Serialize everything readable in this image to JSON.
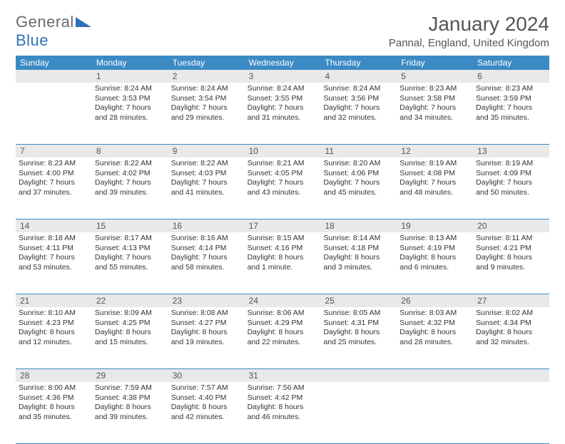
{
  "logo": {
    "text1": "General",
    "text2": "Blue"
  },
  "title": "January 2024",
  "location": "Pannal, England, United Kingdom",
  "colors": {
    "header_bg": "#3b8ac4",
    "header_text": "#ffffff",
    "daynum_bg": "#e9e9e9",
    "border": "#3b8ac4",
    "logo_gray": "#6b6b6b",
    "logo_blue": "#2f72b8"
  },
  "weekdays": [
    "Sunday",
    "Monday",
    "Tuesday",
    "Wednesday",
    "Thursday",
    "Friday",
    "Saturday"
  ],
  "weeks": [
    [
      {
        "n": "",
        "sr": "",
        "ss": "",
        "dl": ""
      },
      {
        "n": "1",
        "sr": "Sunrise: 8:24 AM",
        "ss": "Sunset: 3:53 PM",
        "dl": "Daylight: 7 hours and 28 minutes."
      },
      {
        "n": "2",
        "sr": "Sunrise: 8:24 AM",
        "ss": "Sunset: 3:54 PM",
        "dl": "Daylight: 7 hours and 29 minutes."
      },
      {
        "n": "3",
        "sr": "Sunrise: 8:24 AM",
        "ss": "Sunset: 3:55 PM",
        "dl": "Daylight: 7 hours and 31 minutes."
      },
      {
        "n": "4",
        "sr": "Sunrise: 8:24 AM",
        "ss": "Sunset: 3:56 PM",
        "dl": "Daylight: 7 hours and 32 minutes."
      },
      {
        "n": "5",
        "sr": "Sunrise: 8:23 AM",
        "ss": "Sunset: 3:58 PM",
        "dl": "Daylight: 7 hours and 34 minutes."
      },
      {
        "n": "6",
        "sr": "Sunrise: 8:23 AM",
        "ss": "Sunset: 3:59 PM",
        "dl": "Daylight: 7 hours and 35 minutes."
      }
    ],
    [
      {
        "n": "7",
        "sr": "Sunrise: 8:23 AM",
        "ss": "Sunset: 4:00 PM",
        "dl": "Daylight: 7 hours and 37 minutes."
      },
      {
        "n": "8",
        "sr": "Sunrise: 8:22 AM",
        "ss": "Sunset: 4:02 PM",
        "dl": "Daylight: 7 hours and 39 minutes."
      },
      {
        "n": "9",
        "sr": "Sunrise: 8:22 AM",
        "ss": "Sunset: 4:03 PM",
        "dl": "Daylight: 7 hours and 41 minutes."
      },
      {
        "n": "10",
        "sr": "Sunrise: 8:21 AM",
        "ss": "Sunset: 4:05 PM",
        "dl": "Daylight: 7 hours and 43 minutes."
      },
      {
        "n": "11",
        "sr": "Sunrise: 8:20 AM",
        "ss": "Sunset: 4:06 PM",
        "dl": "Daylight: 7 hours and 45 minutes."
      },
      {
        "n": "12",
        "sr": "Sunrise: 8:19 AM",
        "ss": "Sunset: 4:08 PM",
        "dl": "Daylight: 7 hours and 48 minutes."
      },
      {
        "n": "13",
        "sr": "Sunrise: 8:19 AM",
        "ss": "Sunset: 4:09 PM",
        "dl": "Daylight: 7 hours and 50 minutes."
      }
    ],
    [
      {
        "n": "14",
        "sr": "Sunrise: 8:18 AM",
        "ss": "Sunset: 4:11 PM",
        "dl": "Daylight: 7 hours and 53 minutes."
      },
      {
        "n": "15",
        "sr": "Sunrise: 8:17 AM",
        "ss": "Sunset: 4:13 PM",
        "dl": "Daylight: 7 hours and 55 minutes."
      },
      {
        "n": "16",
        "sr": "Sunrise: 8:16 AM",
        "ss": "Sunset: 4:14 PM",
        "dl": "Daylight: 7 hours and 58 minutes."
      },
      {
        "n": "17",
        "sr": "Sunrise: 8:15 AM",
        "ss": "Sunset: 4:16 PM",
        "dl": "Daylight: 8 hours and 1 minute."
      },
      {
        "n": "18",
        "sr": "Sunrise: 8:14 AM",
        "ss": "Sunset: 4:18 PM",
        "dl": "Daylight: 8 hours and 3 minutes."
      },
      {
        "n": "19",
        "sr": "Sunrise: 8:13 AM",
        "ss": "Sunset: 4:19 PM",
        "dl": "Daylight: 8 hours and 6 minutes."
      },
      {
        "n": "20",
        "sr": "Sunrise: 8:11 AM",
        "ss": "Sunset: 4:21 PM",
        "dl": "Daylight: 8 hours and 9 minutes."
      }
    ],
    [
      {
        "n": "21",
        "sr": "Sunrise: 8:10 AM",
        "ss": "Sunset: 4:23 PM",
        "dl": "Daylight: 8 hours and 12 minutes."
      },
      {
        "n": "22",
        "sr": "Sunrise: 8:09 AM",
        "ss": "Sunset: 4:25 PM",
        "dl": "Daylight: 8 hours and 15 minutes."
      },
      {
        "n": "23",
        "sr": "Sunrise: 8:08 AM",
        "ss": "Sunset: 4:27 PM",
        "dl": "Daylight: 8 hours and 19 minutes."
      },
      {
        "n": "24",
        "sr": "Sunrise: 8:06 AM",
        "ss": "Sunset: 4:29 PM",
        "dl": "Daylight: 8 hours and 22 minutes."
      },
      {
        "n": "25",
        "sr": "Sunrise: 8:05 AM",
        "ss": "Sunset: 4:31 PM",
        "dl": "Daylight: 8 hours and 25 minutes."
      },
      {
        "n": "26",
        "sr": "Sunrise: 8:03 AM",
        "ss": "Sunset: 4:32 PM",
        "dl": "Daylight: 8 hours and 28 minutes."
      },
      {
        "n": "27",
        "sr": "Sunrise: 8:02 AM",
        "ss": "Sunset: 4:34 PM",
        "dl": "Daylight: 8 hours and 32 minutes."
      }
    ],
    [
      {
        "n": "28",
        "sr": "Sunrise: 8:00 AM",
        "ss": "Sunset: 4:36 PM",
        "dl": "Daylight: 8 hours and 35 minutes."
      },
      {
        "n": "29",
        "sr": "Sunrise: 7:59 AM",
        "ss": "Sunset: 4:38 PM",
        "dl": "Daylight: 8 hours and 39 minutes."
      },
      {
        "n": "30",
        "sr": "Sunrise: 7:57 AM",
        "ss": "Sunset: 4:40 PM",
        "dl": "Daylight: 8 hours and 42 minutes."
      },
      {
        "n": "31",
        "sr": "Sunrise: 7:56 AM",
        "ss": "Sunset: 4:42 PM",
        "dl": "Daylight: 8 hours and 46 minutes."
      },
      {
        "n": "",
        "sr": "",
        "ss": "",
        "dl": ""
      },
      {
        "n": "",
        "sr": "",
        "ss": "",
        "dl": ""
      },
      {
        "n": "",
        "sr": "",
        "ss": "",
        "dl": ""
      }
    ]
  ]
}
